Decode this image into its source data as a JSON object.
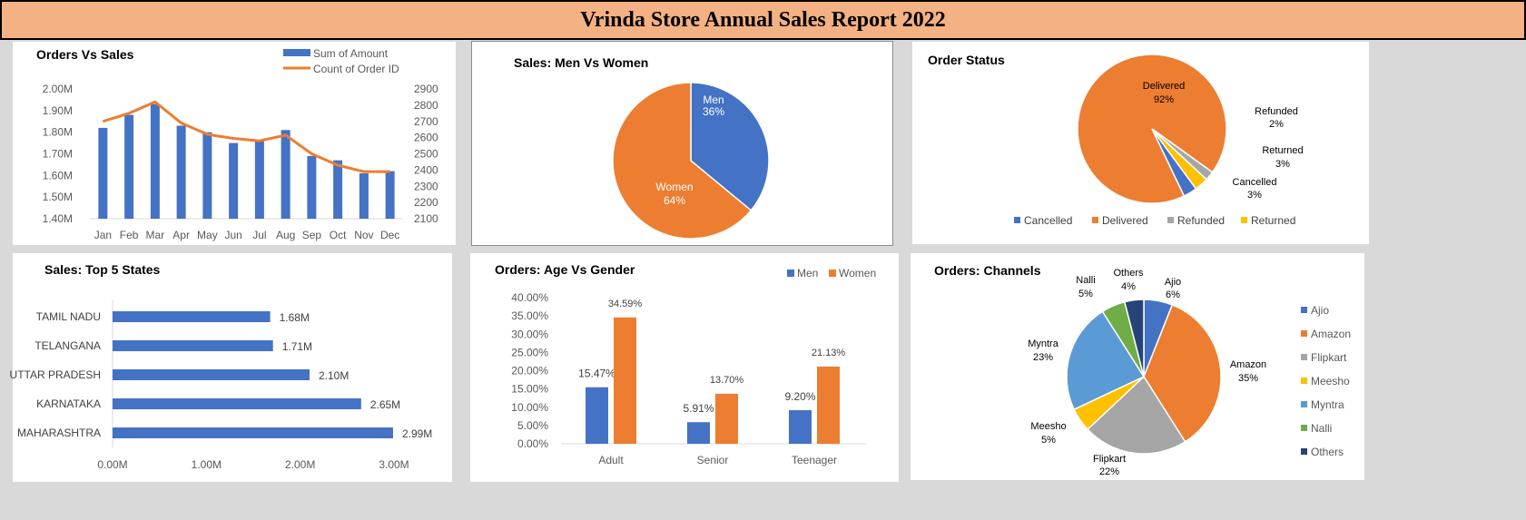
{
  "report_title": "Vrinda Store Annual Sales Report 2022",
  "colors": {
    "blue": "#4472c4",
    "orange": "#ed7d31",
    "gray": "#a5a5a5",
    "yellow": "#ffc000",
    "lightblue": "#5b9bd5",
    "green": "#70ad47",
    "navy": "#264478"
  },
  "chart_data": [
    {
      "id": "orders_vs_sales",
      "type": "bar",
      "title": "Orders Vs Sales",
      "categories": [
        "Jan",
        "Feb",
        "Mar",
        "Apr",
        "May",
        "Jun",
        "Jul",
        "Aug",
        "Sep",
        "Oct",
        "Nov",
        "Dec"
      ],
      "series": [
        {
          "name": "Sum of Amount",
          "type": "bar",
          "axis": "left",
          "values": [
            1.82,
            1.88,
            1.93,
            1.83,
            1.8,
            1.75,
            1.76,
            1.81,
            1.69,
            1.67,
            1.61,
            1.62
          ]
        },
        {
          "name": "Count of Order ID",
          "type": "line",
          "axis": "right",
          "values": [
            2700,
            2750,
            2820,
            2690,
            2620,
            2595,
            2580,
            2615,
            2500,
            2430,
            2390,
            2390
          ]
        }
      ],
      "left_ticks": [
        "1.40M",
        "1.50M",
        "1.60M",
        "1.70M",
        "1.80M",
        "1.90M",
        "2.00M"
      ],
      "right_ticks": [
        "2100",
        "2200",
        "2300",
        "2400",
        "2500",
        "2600",
        "2700",
        "2800",
        "2900"
      ],
      "ylim_left": [
        1.4,
        2.0
      ],
      "ylim_right": [
        2100,
        2900
      ],
      "legend": "top-right"
    },
    {
      "id": "men_vs_women",
      "type": "pie",
      "title": "Sales: Men Vs Women",
      "labels": [
        "Men",
        "Women"
      ],
      "values": [
        36,
        64
      ],
      "data_labels": [
        "36%",
        "64%"
      ]
    },
    {
      "id": "order_status",
      "type": "pie",
      "title": "Order Status",
      "labels": [
        "Cancelled",
        "Delivered",
        "Refunded",
        "Returned"
      ],
      "values": [
        3,
        92,
        2,
        3
      ],
      "data_labels": [
        "3%",
        "92%",
        "2%",
        "3%"
      ],
      "legend": "bottom"
    },
    {
      "id": "top5_states",
      "type": "bar",
      "orientation": "horizontal",
      "title": "Sales: Top 5 States",
      "categories": [
        "TAMIL NADU",
        "TELANGANA",
        "UTTAR PRADESH",
        "KARNATAKA",
        "MAHARASHTRA"
      ],
      "values": [
        1.68,
        1.71,
        2.1,
        2.65,
        2.99
      ],
      "data_labels": [
        "1.68M",
        "1.71M",
        "2.10M",
        "2.65M",
        "2.99M"
      ],
      "x_ticks": [
        "0.00M",
        "1.00M",
        "2.00M",
        "3.00M"
      ],
      "xlim": [
        0,
        3
      ]
    },
    {
      "id": "age_vs_gender",
      "type": "bar",
      "title": "Orders: Age Vs Gender",
      "categories": [
        "Adult",
        "Senior",
        "Teenager"
      ],
      "series": [
        {
          "name": "Men",
          "values": [
            15.47,
            5.91,
            9.2
          ],
          "data_labels": [
            "15.47%",
            "5.91%",
            "9.20%"
          ]
        },
        {
          "name": "Women",
          "values": [
            34.59,
            13.7,
            21.13
          ],
          "data_labels": [
            "34.59%",
            "13.70%",
            "21.13%"
          ]
        }
      ],
      "y_ticks": [
        "0.00%",
        "5.00%",
        "10.00%",
        "15.00%",
        "20.00%",
        "25.00%",
        "30.00%",
        "35.00%",
        "40.00%"
      ],
      "ylim": [
        0,
        40
      ],
      "legend": "top-right"
    },
    {
      "id": "channels",
      "type": "pie",
      "title": "Orders: Channels",
      "labels": [
        "Ajio",
        "Amazon",
        "Flipkart",
        "Meesho",
        "Myntra",
        "Nalli",
        "Others"
      ],
      "values": [
        6,
        35,
        22,
        5,
        23,
        5,
        4
      ],
      "data_labels": [
        "6%",
        "35%",
        "22%",
        "5%",
        "23%",
        "5%",
        "4%"
      ],
      "legend": "right"
    }
  ]
}
